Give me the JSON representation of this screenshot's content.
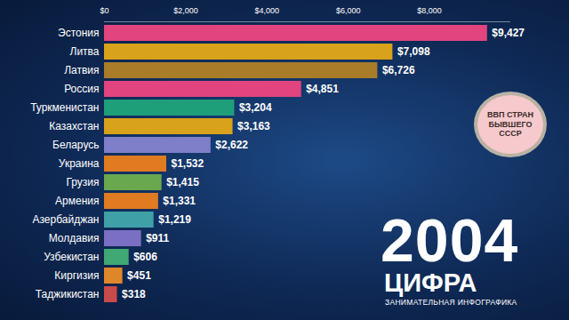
{
  "chart_data": {
    "type": "bar",
    "orientation": "horizontal",
    "categories": [
      "Эстония",
      "Литва",
      "Латвия",
      "Россия",
      "Туркменистан",
      "Казахстан",
      "Беларусь",
      "Украина",
      "Грузия",
      "Армения",
      "Азербайджан",
      "Молдавия",
      "Узбекистан",
      "Киргизия",
      "Таджикистан"
    ],
    "values": [
      9427,
      7098,
      6726,
      4851,
      3204,
      3163,
      2622,
      1532,
      1415,
      1331,
      1219,
      911,
      606,
      451,
      318
    ],
    "value_labels": [
      "$9,427",
      "$7,098",
      "$6,726",
      "$4,851",
      "$3,204",
      "$3,163",
      "$2,622",
      "$1,532",
      "$1,415",
      "$1,331",
      "$1,219",
      "$911",
      "$606",
      "$451",
      "$318"
    ],
    "colors": [
      "#e1447e",
      "#d9a21b",
      "#a97c2a",
      "#e1447e",
      "#1f9e7a",
      "#d9a21b",
      "#7f7fc9",
      "#e07b22",
      "#6aa84f",
      "#e07b22",
      "#3fa0a8",
      "#7b6fc4",
      "#3fa874",
      "#e0862a",
      "#c94a4a"
    ],
    "data_labels": true,
    "grid": false,
    "xlim": [
      0,
      10000
    ],
    "xticks": [
      {
        "value": 0,
        "label": "$0"
      },
      {
        "value": 2000,
        "label": "$2,000"
      },
      {
        "value": 4000,
        "label": "$4,000"
      },
      {
        "value": 6000,
        "label": "$6,000"
      },
      {
        "value": 8000,
        "label": "$8,000"
      }
    ],
    "annotations": [
      "ВВП СТРАН БЫВШЕГО СССР",
      "2004",
      "ЦИФРА",
      "ЗАНИМАТЕЛЬНАЯ ИНФОГРАФИКА"
    ]
  }
}
